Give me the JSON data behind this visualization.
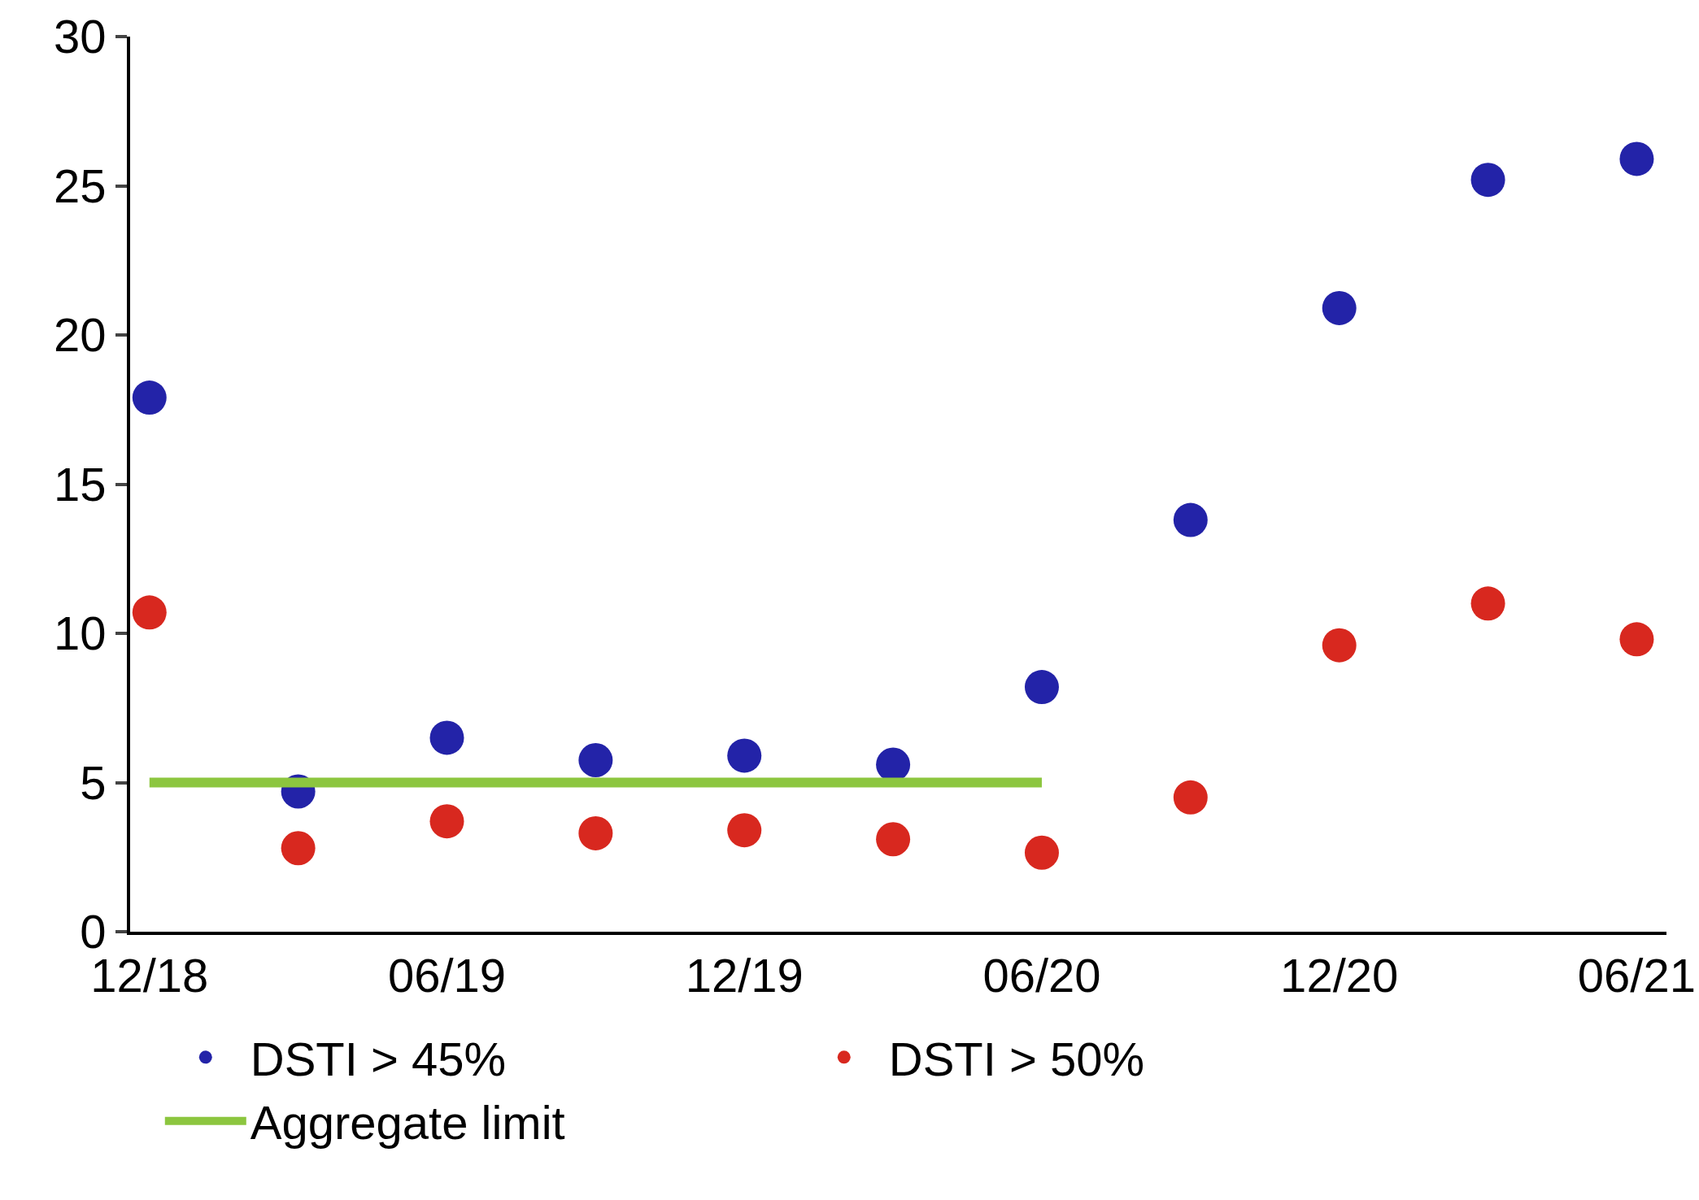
{
  "chart_data": {
    "type": "scatter",
    "categories": [
      "12/18",
      null,
      "06/19",
      null,
      "12/19",
      null,
      "06/20",
      null,
      "12/20",
      null,
      "06/21"
    ],
    "ylim": [
      0,
      30
    ],
    "yticks": [
      0,
      5,
      10,
      15,
      20,
      25,
      30
    ],
    "grid": false,
    "legend": "bottom",
    "marker": "circle",
    "series": [
      {
        "name": "DSTI > 45%",
        "color": "#2323a8",
        "values": [
          17.9,
          4.7,
          6.5,
          5.75,
          5.9,
          5.6,
          8.2,
          13.8,
          20.9,
          25.2,
          25.9
        ]
      },
      {
        "name": "DSTI > 50%",
        "color": "#d8281f",
        "values": [
          10.7,
          2.8,
          3.7,
          3.3,
          3.4,
          3.1,
          2.65,
          4.5,
          9.6,
          11.0,
          9.8
        ]
      },
      {
        "name": "Aggregate limit",
        "type": "line",
        "marker": "none",
        "color": "#8cc63f",
        "values": [
          5,
          5,
          5,
          5,
          5,
          5,
          5,
          null,
          null,
          null,
          null
        ]
      }
    ]
  }
}
